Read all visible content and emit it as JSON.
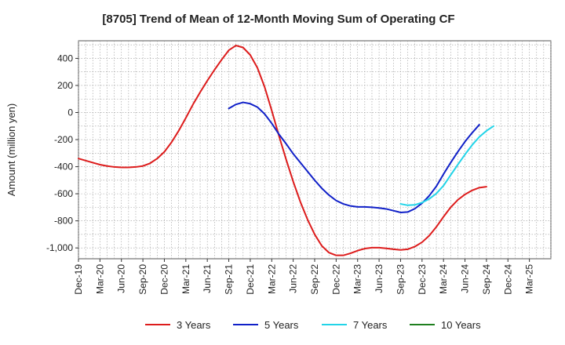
{
  "chart_data": {
    "type": "line",
    "title": "[8705]  Trend of Mean of 12-Month Moving Sum of Operating CF",
    "xlabel": "",
    "ylabel": "Amount (million yen)",
    "ylim": [
      -1080,
      530
    ],
    "yticks": [
      400,
      200,
      0,
      -200,
      -400,
      -600,
      -800,
      -1000
    ],
    "ytick_labels": [
      "400",
      "200",
      "0",
      "-200",
      "-400",
      "-600",
      "-800",
      "-1,000"
    ],
    "x_range": [
      0,
      66
    ],
    "x_ticks": [
      {
        "i": 0,
        "label": "Dec-19"
      },
      {
        "i": 3,
        "label": "Mar-20"
      },
      {
        "i": 6,
        "label": "Jun-20"
      },
      {
        "i": 9,
        "label": "Sep-20"
      },
      {
        "i": 12,
        "label": "Dec-20"
      },
      {
        "i": 15,
        "label": "Mar-21"
      },
      {
        "i": 18,
        "label": "Jun-21"
      },
      {
        "i": 21,
        "label": "Sep-21"
      },
      {
        "i": 24,
        "label": "Dec-21"
      },
      {
        "i": 27,
        "label": "Mar-22"
      },
      {
        "i": 30,
        "label": "Jun-22"
      },
      {
        "i": 33,
        "label": "Sep-22"
      },
      {
        "i": 36,
        "label": "Dec-22"
      },
      {
        "i": 39,
        "label": "Mar-23"
      },
      {
        "i": 42,
        "label": "Jun-23"
      },
      {
        "i": 45,
        "label": "Sep-23"
      },
      {
        "i": 48,
        "label": "Dec-23"
      },
      {
        "i": 51,
        "label": "Mar-24"
      },
      {
        "i": 54,
        "label": "Jun-24"
      },
      {
        "i": 57,
        "label": "Sep-24"
      },
      {
        "i": 60,
        "label": "Dec-24"
      },
      {
        "i": 63,
        "label": "Mar-25"
      }
    ],
    "grid": true,
    "legend_position": "bottom",
    "series": [
      {
        "name": "3 Years",
        "color": "#dd1c1c",
        "start": 0,
        "values": [
          -340,
          -355,
          -370,
          -385,
          -395,
          -402,
          -405,
          -405,
          -402,
          -395,
          -375,
          -340,
          -290,
          -220,
          -135,
          -40,
          60,
          150,
          235,
          315,
          390,
          460,
          495,
          480,
          425,
          330,
          190,
          15,
          -170,
          -345,
          -510,
          -660,
          -790,
          -900,
          -985,
          -1035,
          -1055,
          -1055,
          -1040,
          -1020,
          -1005,
          -998,
          -998,
          -1003,
          -1010,
          -1015,
          -1010,
          -990,
          -958,
          -910,
          -845,
          -770,
          -700,
          -645,
          -605,
          -575,
          -555,
          -548
        ]
      },
      {
        "name": "5 Years",
        "color": "#1020c8",
        "start": 21,
        "values": [
          30,
          60,
          75,
          65,
          40,
          -10,
          -80,
          -160,
          -230,
          -305,
          -370,
          -435,
          -500,
          -560,
          -610,
          -650,
          -675,
          -690,
          -697,
          -697,
          -700,
          -705,
          -712,
          -725,
          -738,
          -735,
          -710,
          -670,
          -615,
          -545,
          -455,
          -370,
          -290,
          -215,
          -150,
          -90
        ]
      },
      {
        "name": "7 Years",
        "color": "#22d4e8",
        "start": 45,
        "values": [
          -675,
          -685,
          -682,
          -665,
          -638,
          -598,
          -540,
          -462,
          -385,
          -310,
          -240,
          -180,
          -135,
          -100
        ]
      },
      {
        "name": "10 Years",
        "color": "#1f7f1f",
        "start": 0,
        "values": []
      }
    ]
  }
}
